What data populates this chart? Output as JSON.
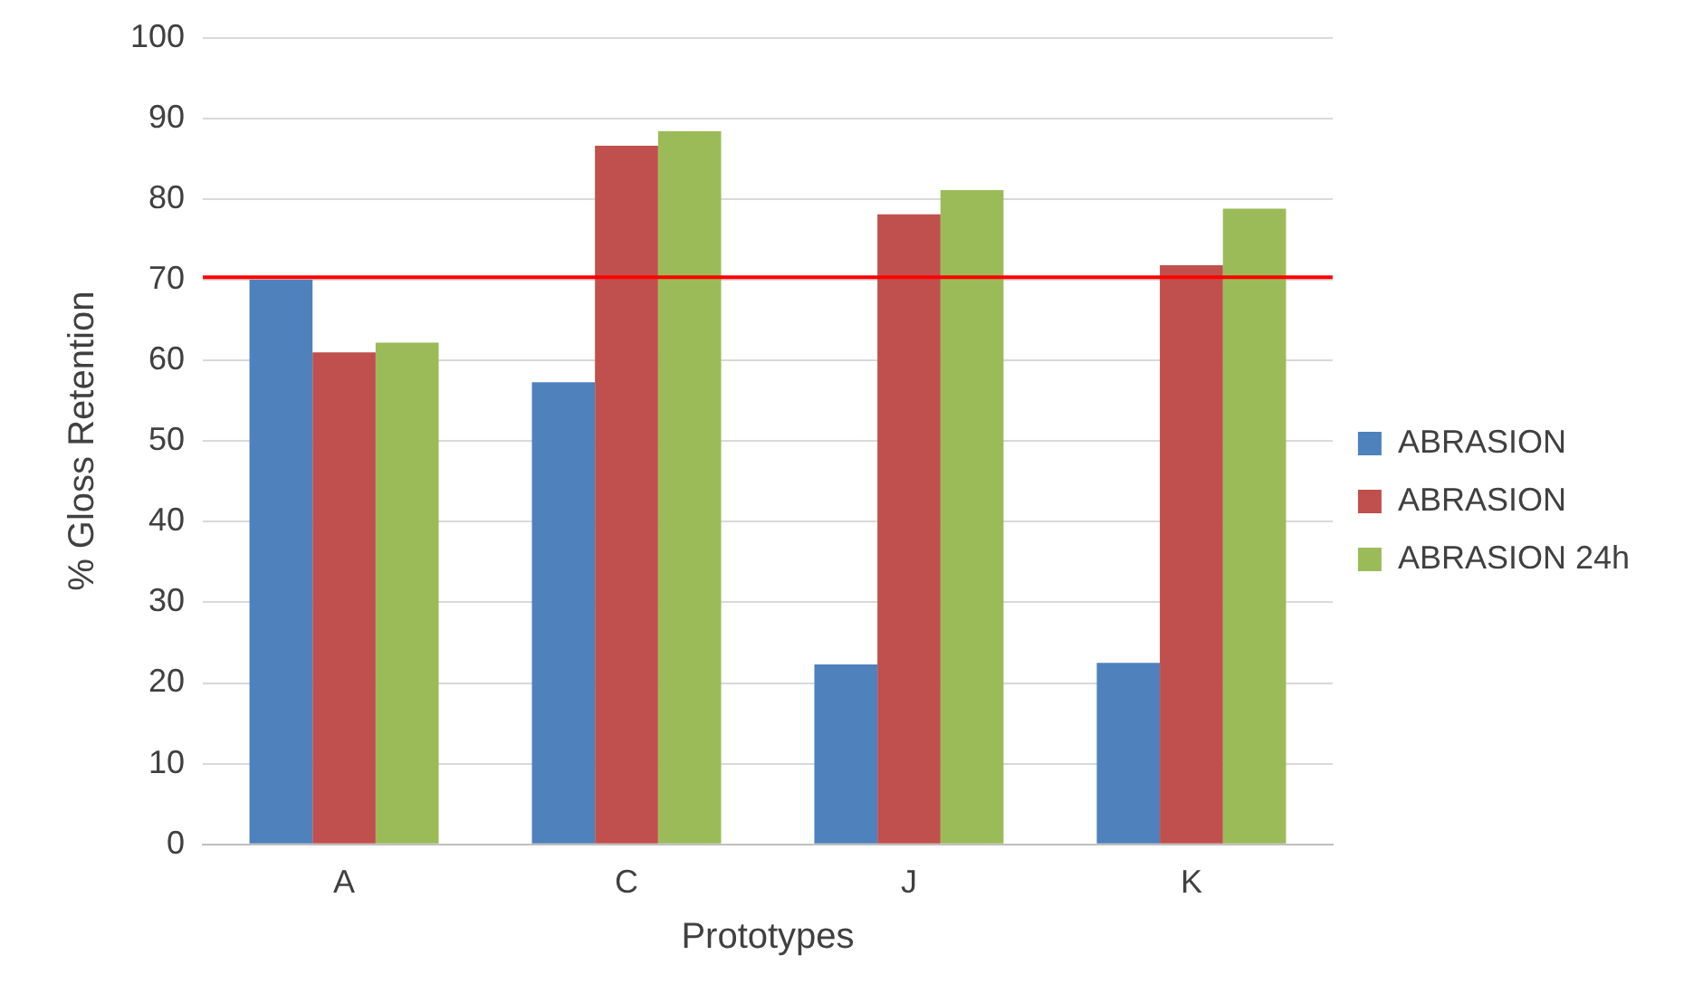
{
  "chart_data": {
    "type": "bar",
    "xlabel": "Prototypes",
    "ylabel": "% Gloss Retention",
    "categories": [
      "A",
      "C",
      "J",
      "K"
    ],
    "series": [
      {
        "name": "ABRASION",
        "color": "#4f81bd",
        "values": [
          70,
          57.3,
          22.3,
          22.5
        ]
      },
      {
        "name": "ABRASION",
        "color": "#c0504d",
        "values": [
          61,
          86.6,
          78.1,
          71.8
        ]
      },
      {
        "name": "ABRASION 24h",
        "color": "#9bbb59",
        "values": [
          62.2,
          88.4,
          81.1,
          78.8
        ]
      }
    ],
    "ylim": [
      0,
      100
    ],
    "yticks": [
      0,
      10,
      20,
      30,
      40,
      50,
      60,
      70,
      80,
      90,
      100
    ],
    "grid": "y",
    "legend": "right",
    "ref_lines": [
      {
        "axis": "y",
        "value": 70.3,
        "color": "#ff0000"
      }
    ]
  }
}
